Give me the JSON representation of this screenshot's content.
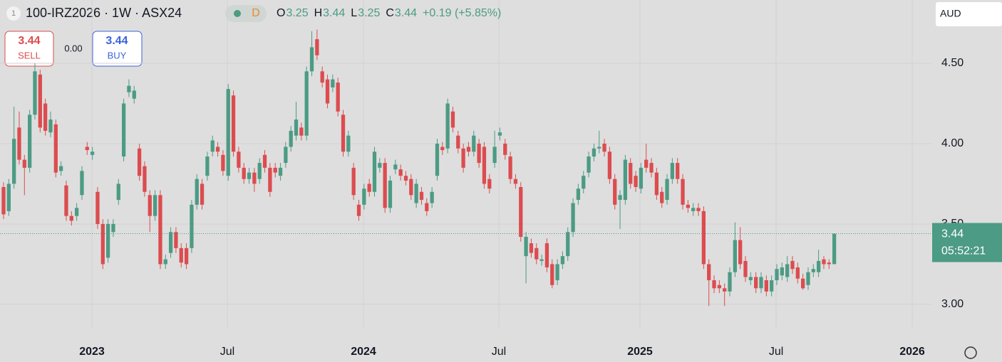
{
  "header": {
    "badge": "1",
    "symbol": "100-IRZ2026 · 1W · ASX24",
    "interval_badge": "D",
    "ohlc": [
      {
        "key": "O",
        "value": "3.25"
      },
      {
        "key": "H",
        "value": "3.44"
      },
      {
        "key": "L",
        "value": "3.25"
      },
      {
        "key": "C",
        "value": "3.44"
      }
    ],
    "change": "+0.19 (+5.85%)",
    "sell": {
      "price": "3.44",
      "label": "SELL"
    },
    "spread": "0.00",
    "buy": {
      "price": "3.44",
      "label": "BUY"
    },
    "currency": "AUD",
    "countdown": "05:52:21"
  },
  "chart_data": {
    "type": "candlestick",
    "up_color": "#4c9b84",
    "down_color": "#dc4c4f",
    "grid": true,
    "last_price": {
      "value": 3.44,
      "label": "3.44"
    },
    "ylim": [
      2.858,
      4.894
    ],
    "yticks": [
      {
        "value": 3.0,
        "label": "3.00"
      },
      {
        "value": 3.5,
        "label": "3.50"
      },
      {
        "value": 4.0,
        "label": "4.00"
      },
      {
        "value": 4.5,
        "label": "4.50"
      }
    ],
    "xlim": [
      -0.68,
      177.6
    ],
    "xticks": [
      {
        "value": 16.92,
        "label": "2023"
      },
      {
        "value": 42.83,
        "label": "Jul"
      },
      {
        "value": 68.89,
        "label": "2024"
      },
      {
        "value": 94.8,
        "label": "Jul"
      },
      {
        "value": 121.81,
        "label": "2025"
      },
      {
        "value": 147.87,
        "label": "Jul"
      },
      {
        "value": 173.92,
        "label": "2026"
      }
    ],
    "open": [
      3.73,
      3.58,
      3.75,
      4.1,
      3.9,
      3.85,
      4.18,
      4.43,
      4.25,
      4.07,
      4.12,
      3.83,
      3.74,
      3.55,
      3.55,
      3.68,
      3.98,
      3.93,
      3.7,
      3.5,
      3.29,
      3.45,
      3.65,
      3.92,
      4.32,
      4.28,
      3.97,
      3.86,
      3.68,
      3.55,
      3.68,
      3.25,
      3.32,
      3.45,
      3.35,
      3.35,
      3.35,
      3.62,
      3.75,
      3.8,
      3.95,
      3.98,
      3.93,
      3.8,
      4.3,
      3.95,
      3.85,
      3.78,
      3.82,
      3.78,
      3.93,
      3.85,
      3.85,
      3.8,
      3.88,
      3.98,
      4.05,
      4.1,
      4.05,
      4.45,
      4.65,
      4.45,
      4.4,
      4.35,
      4.38,
      4.18,
      3.95,
      3.85,
      3.62,
      3.62,
      3.75,
      3.7,
      3.85,
      3.88,
      3.6,
      3.84,
      3.84,
      3.8,
      3.78,
      3.63,
      3.7,
      3.63,
      3.63,
      3.8,
      3.98,
      3.97,
      4.2,
      4.05,
      3.97,
      3.98,
      3.95,
      4.0,
      3.98,
      3.78,
      3.88,
      4.05,
      4.0,
      3.92,
      3.78,
      3.73,
      3.3,
      3.38,
      3.35,
      3.27,
      3.38,
      3.25,
      3.15,
      3.25,
      3.3,
      3.45,
      3.65,
      3.72,
      3.82,
      3.92,
      3.97,
      4.0,
      3.95,
      3.78,
      3.65,
      3.65,
      3.88,
      3.8,
      3.72,
      3.9,
      3.88,
      3.82,
      3.7,
      3.65,
      3.78,
      3.88,
      3.78,
      3.62,
      3.58,
      3.6,
      3.58,
      3.25,
      3.15,
      3.12,
      3.1,
      3.08,
      3.2,
      3.4,
      3.27,
      3.15,
      3.17,
      3.1,
      3.15,
      3.08,
      3.15,
      3.18,
      3.17,
      3.27,
      3.23,
      3.16,
      3.12,
      3.2,
      3.2,
      3.28,
      3.26,
      3.25
    ],
    "high": [
      3.76,
      3.78,
      4.23,
      4.2,
      3.93,
      4.21,
      4.5,
      4.46,
      4.28,
      4.2,
      4.15,
      3.89,
      3.77,
      3.58,
      3.63,
      3.86,
      4.01,
      3.98,
      3.73,
      3.53,
      3.53,
      3.53,
      3.78,
      4.28,
      4.4,
      4.36,
      4.0,
      3.89,
      3.71,
      3.71,
      3.71,
      3.31,
      3.48,
      3.48,
      3.38,
      3.38,
      3.65,
      3.81,
      3.78,
      3.95,
      4.05,
      4.01,
      3.96,
      4.37,
      4.33,
      3.98,
      3.88,
      3.85,
      3.85,
      3.91,
      3.96,
      3.88,
      3.88,
      3.88,
      4.01,
      4.11,
      4.26,
      4.13,
      4.48,
      4.7,
      4.71,
      4.48,
      4.43,
      4.43,
      4.41,
      4.21,
      4.08,
      3.88,
      3.65,
      3.75,
      3.78,
      3.98,
      3.91,
      3.91,
      3.8,
      3.9,
      3.87,
      3.83,
      3.81,
      3.78,
      3.73,
      3.66,
      3.73,
      4.03,
      4.01,
      4.28,
      4.23,
      4.08,
      4.0,
      4.01,
      4.08,
      4.03,
      4.01,
      3.81,
      4.08,
      4.1,
      4.03,
      3.95,
      3.81,
      3.76,
      3.45,
      3.41,
      3.38,
      3.31,
      3.41,
      3.28,
      3.28,
      3.33,
      3.48,
      3.66,
      3.75,
      3.83,
      3.95,
      4.0,
      4.08,
      4.03,
      3.98,
      3.81,
      3.71,
      3.93,
      3.91,
      3.83,
      3.88,
      4.0,
      3.91,
      3.85,
      3.73,
      3.81,
      3.91,
      3.91,
      3.81,
      3.65,
      3.63,
      3.63,
      3.61,
      3.28,
      3.18,
      3.15,
      3.13,
      3.23,
      3.51,
      3.48,
      3.3,
      3.2,
      3.2,
      3.2,
      3.18,
      3.18,
      3.25,
      3.26,
      3.3,
      3.3,
      3.26,
      3.19,
      3.23,
      3.25,
      3.34,
      3.3,
      3.28,
      3.44
    ],
    "low": [
      3.53,
      3.55,
      3.72,
      3.87,
      3.68,
      3.82,
      4.15,
      4.07,
      4.05,
      4.04,
      3.79,
      3.8,
      3.52,
      3.49,
      3.52,
      3.65,
      3.93,
      3.9,
      3.47,
      3.22,
      3.26,
      3.42,
      3.62,
      3.89,
      4.29,
      4.25,
      3.77,
      3.67,
      3.45,
      3.52,
      3.22,
      3.22,
      3.29,
      3.32,
      3.23,
      3.22,
      3.32,
      3.59,
      3.59,
      3.77,
      3.92,
      3.92,
      3.8,
      3.77,
      3.92,
      3.82,
      3.75,
      3.75,
      3.7,
      3.75,
      3.82,
      3.67,
      3.79,
      3.77,
      3.85,
      3.95,
      4.02,
      4.02,
      4.02,
      4.42,
      4.52,
      4.35,
      4.22,
      4.32,
      4.17,
      3.92,
      3.92,
      3.65,
      3.52,
      3.59,
      3.67,
      3.67,
      3.82,
      3.57,
      3.57,
      3.81,
      3.77,
      3.74,
      3.65,
      3.6,
      3.62,
      3.55,
      3.6,
      3.77,
      3.93,
      3.94,
      4.07,
      3.94,
      3.82,
      3.92,
      3.92,
      3.85,
      3.72,
      3.69,
      3.85,
      4.02,
      3.9,
      3.75,
      3.72,
      3.39,
      3.13,
      3.29,
      3.25,
      3.24,
      3.2,
      3.1,
      3.12,
      3.22,
      3.27,
      3.42,
      3.62,
      3.69,
      3.79,
      3.89,
      3.94,
      3.92,
      3.75,
      3.59,
      3.47,
      3.62,
      3.72,
      3.7,
      3.69,
      3.82,
      3.79,
      3.65,
      3.6,
      3.62,
      3.75,
      3.75,
      3.59,
      3.57,
      3.55,
      3.55,
      3.22,
      2.99,
      3.07,
      3.07,
      2.99,
      3.05,
      3.17,
      3.22,
      3.14,
      3.12,
      3.07,
      3.07,
      3.05,
      3.05,
      3.12,
      3.15,
      3.14,
      3.19,
      3.13,
      3.09,
      3.09,
      3.17,
      3.17,
      3.22,
      3.22,
      3.25
    ],
    "close": [
      3.56,
      3.75,
      4.03,
      3.9,
      3.85,
      4.18,
      4.45,
      4.1,
      4.08,
      4.15,
      3.82,
      3.86,
      3.55,
      3.52,
      3.6,
      3.83,
      3.96,
      3.95,
      3.5,
      3.25,
      3.5,
      3.5,
      3.75,
      4.25,
      4.36,
      4.33,
      3.8,
      3.7,
      3.55,
      3.68,
      3.25,
      3.28,
      3.45,
      3.35,
      3.26,
      3.25,
      3.62,
      3.78,
      3.62,
      3.92,
      4.02,
      3.95,
      3.83,
      4.34,
      3.95,
      3.85,
      3.78,
      3.82,
      3.75,
      3.88,
      3.85,
      3.7,
      3.82,
      3.85,
      3.98,
      4.08,
      4.15,
      4.05,
      4.45,
      4.6,
      4.55,
      4.38,
      4.25,
      4.4,
      4.2,
      3.95,
      4.05,
      3.68,
      3.55,
      3.72,
      3.7,
      3.95,
      3.88,
      3.6,
      3.77,
      3.87,
      3.8,
      3.77,
      3.68,
      3.75,
      3.65,
      3.58,
      3.7,
      4.0,
      3.96,
      4.25,
      4.1,
      3.97,
      3.85,
      3.95,
      4.05,
      3.88,
      3.75,
      3.72,
      3.98,
      4.07,
      3.93,
      3.78,
      3.75,
      3.42,
      3.42,
      3.32,
      3.28,
      3.28,
      3.23,
      3.12,
      3.25,
      3.3,
      3.45,
      3.63,
      3.72,
      3.8,
      3.92,
      3.97,
      3.98,
      3.95,
      3.78,
      3.62,
      3.68,
      3.9,
      3.75,
      3.73,
      3.85,
      3.85,
      3.82,
      3.68,
      3.63,
      3.78,
      3.88,
      3.78,
      3.62,
      3.6,
      3.6,
      3.58,
      3.25,
      3.15,
      3.1,
      3.1,
      3.08,
      3.2,
      3.4,
      3.25,
      3.17,
      3.17,
      3.1,
      3.17,
      3.08,
      3.15,
      3.22,
      3.23,
      3.25,
      3.22,
      3.16,
      3.1,
      3.2,
      3.22,
      3.27,
      3.25,
      3.25,
      3.44
    ]
  }
}
